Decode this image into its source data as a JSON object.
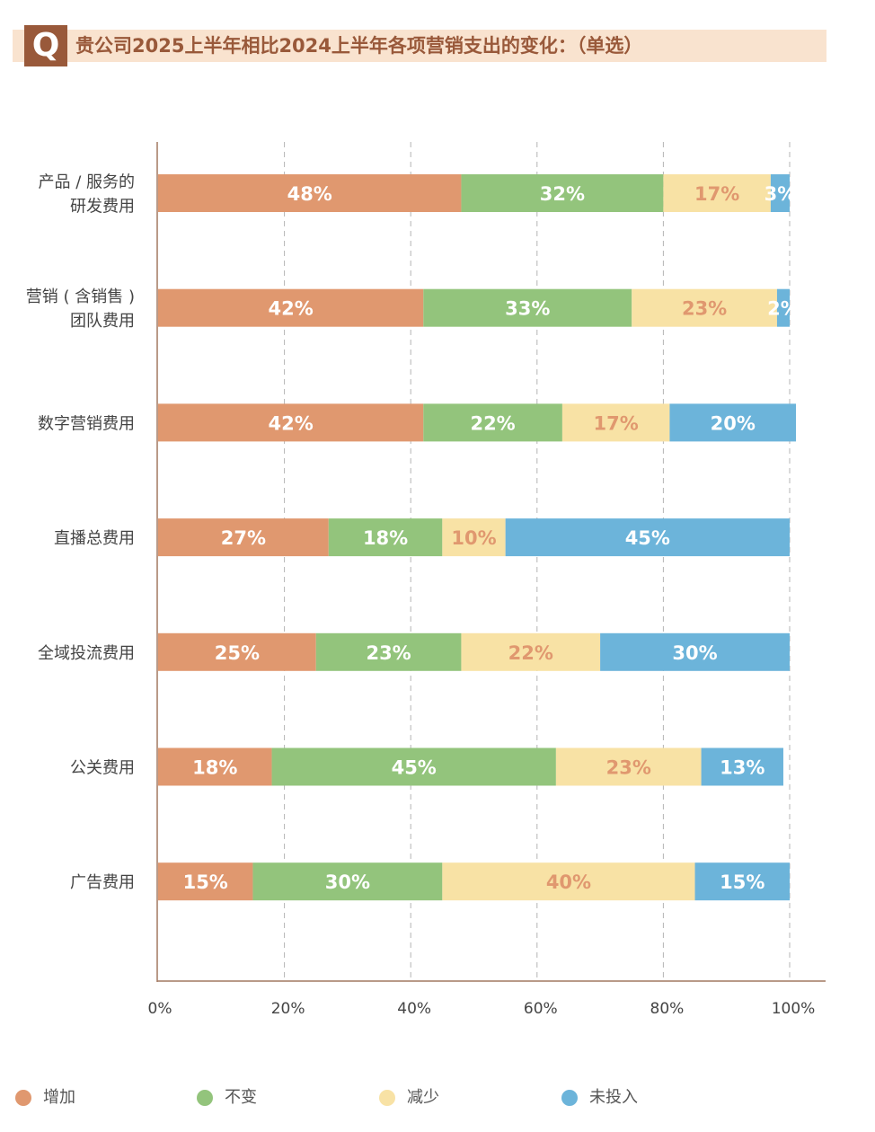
{
  "header": {
    "badge": "Q",
    "title": "贵公司2025上半年相比2024上半年各项营销支出的变化：（单选）"
  },
  "chart_data": {
    "type": "bar",
    "orientation": "horizontal-stacked-100",
    "title": "贵公司2025上半年相比2024上半年各项营销支出的变化：（单选）",
    "categories": [
      [
        "产品 / 服务的",
        "研发费用"
      ],
      [
        "营销 ( 含销售 )",
        "团队费用"
      ],
      [
        "数字营销费用"
      ],
      [
        "直播总费用"
      ],
      [
        "全域投流费用"
      ],
      [
        "公关费用"
      ],
      [
        "广告费用"
      ]
    ],
    "series": [
      {
        "name": "增加",
        "color": "#e0986f",
        "label_color": "#ffffff",
        "values": [
          48,
          42,
          42,
          27,
          25,
          18,
          15
        ]
      },
      {
        "name": "不变",
        "color": "#93c47c",
        "label_color": "#ffffff",
        "values": [
          32,
          33,
          22,
          18,
          23,
          45,
          30
        ]
      },
      {
        "name": "减少",
        "color": "#f8e2a5",
        "label_color": "#e0986f",
        "values": [
          17,
          23,
          17,
          10,
          22,
          23,
          40
        ]
      },
      {
        "name": "未投入",
        "color": "#6cb4da",
        "label_color": "#ffffff",
        "values": [
          3,
          2,
          20,
          45,
          30,
          13,
          15
        ]
      }
    ],
    "value_suffix": "%",
    "xlim": [
      0,
      100
    ],
    "xticks": [
      "0%",
      "20%",
      "40%",
      "60%",
      "80%",
      "100%"
    ],
    "grid": "dashed vertical",
    "legend": "bottom"
  }
}
